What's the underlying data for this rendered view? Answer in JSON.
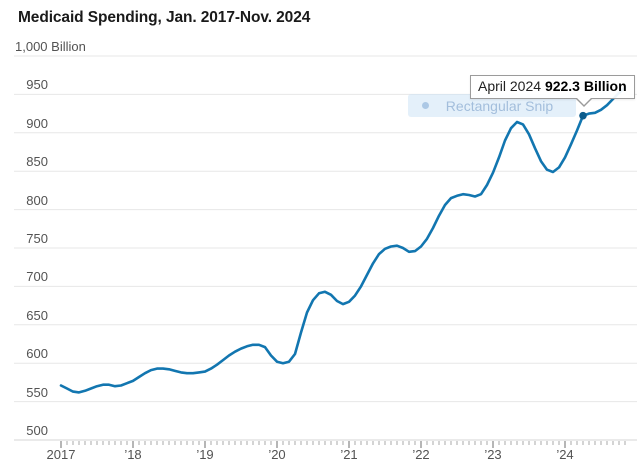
{
  "header": {
    "title": "Medicaid Spending, Jan. 2017-Nov. 2024"
  },
  "tooltip": {
    "label": "April 2024",
    "value": "922.3 Billion"
  },
  "snip_toast": {
    "label": "Rectangular Snip"
  },
  "chart_data": {
    "type": "line",
    "title": "Medicaid Spending, Jan. 2017-Nov. 2024",
    "xlabel": "",
    "ylabel": "Billion",
    "ylim": [
      500,
      1000
    ],
    "grid": "horizontal",
    "legend_position": "none",
    "y_ticks": [
      500,
      550,
      600,
      650,
      700,
      750,
      800,
      850,
      900,
      950,
      1000
    ],
    "y_tick_labels": [
      "500",
      "550",
      "600",
      "650",
      "700",
      "750",
      "800",
      "850",
      "900",
      "950",
      "1,000 Billion"
    ],
    "x_tick_labels": [
      "2017",
      "’18",
      "’19",
      "’20",
      "’21",
      "’22",
      "’23",
      "’24"
    ],
    "x_start": "Jan 2017",
    "x_end": "Nov 2024",
    "x_freq": "monthly",
    "line_color": "#1276b0",
    "highlight": {
      "month_index": 87,
      "x_label": "April 2024",
      "value": 922.3,
      "dot_color": "#0c5c8c"
    },
    "series": [
      {
        "name": "Medicaid Spending (Billion USD)",
        "values": [
          571,
          567,
          563,
          562,
          564,
          567,
          570,
          572,
          572,
          570,
          571,
          574,
          577,
          582,
          587,
          591,
          593,
          593,
          592,
          590,
          588,
          587,
          587,
          588,
          589,
          593,
          598,
          604,
          610,
          615,
          619,
          622,
          624,
          624,
          621,
          610,
          602,
          600,
          602,
          612,
          640,
          666,
          682,
          691,
          693,
          689,
          681,
          677,
          680,
          688,
          700,
          715,
          730,
          742,
          749,
          752,
          753,
          750,
          745,
          746,
          752,
          762,
          776,
          792,
          806,
          815,
          818,
          820,
          819,
          817,
          820,
          832,
          848,
          868,
          890,
          906,
          914,
          911,
          898,
          880,
          863,
          852,
          849,
          855,
          868,
          885,
          903,
          922.3,
          925,
          926,
          930,
          936,
          944,
          952,
          959
        ]
      }
    ]
  }
}
